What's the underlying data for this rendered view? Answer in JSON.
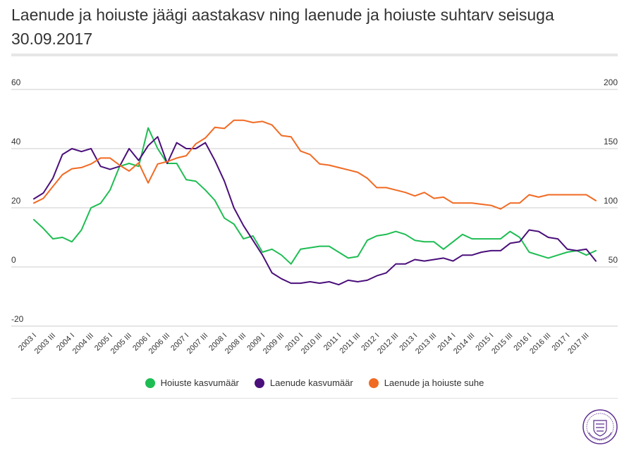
{
  "title": "Laenude ja hoiuste jäägi aastakasv ning laenude ja hoiuste suhtarv seisuga 30.09.2017",
  "colors": {
    "hoiused": "#1ebd53",
    "laenud": "#4a0f7a",
    "suhe": "#f16a22",
    "grid": "#cccccc",
    "seal": "#5b2d8e"
  },
  "chart_data": {
    "type": "line",
    "left_axis": {
      "min": -20,
      "max": 60,
      "ticks": [
        -20,
        0,
        20,
        40,
        60
      ]
    },
    "right_axis": {
      "min": 0,
      "max": 200,
      "ticks": [
        50,
        100,
        150,
        200
      ]
    },
    "x_tick_labels": [
      "2003 I",
      "2003 III",
      "2004 I",
      "2004 III",
      "2005 I",
      "2005 III",
      "2006 I",
      "2006 III",
      "2007 I",
      "2007 III",
      "2008 I",
      "2008 III",
      "2009 I",
      "2009 III",
      "2010 I",
      "2010 III",
      "2011 I",
      "2011 III",
      "2012 I",
      "2012 III",
      "2013 I",
      "2013 III",
      "2014 I",
      "2014 III",
      "2015 I",
      "2015 III",
      "2016 I",
      "2016 III",
      "2017 I",
      "2017 III"
    ],
    "series": [
      {
        "name": "Hoiuste kasvumäär",
        "axis": "left",
        "color_key": "hoiused",
        "values": [
          16,
          13,
          9.5,
          10,
          8.5,
          12.5,
          20,
          21.5,
          26,
          34,
          35,
          34,
          47,
          40,
          35,
          35,
          29.5,
          29,
          26,
          22.5,
          16.5,
          14.5,
          9.5,
          10.5,
          5,
          6,
          4,
          1,
          6,
          6.5,
          7,
          7,
          5,
          3,
          3.5,
          9,
          10.5,
          11,
          12,
          11,
          9,
          8.5,
          8.5,
          6,
          8.5,
          11,
          9.5,
          9.5,
          9.5,
          9.5,
          12,
          10,
          5,
          4,
          3,
          4,
          5,
          5.5,
          4,
          5.5
        ]
      },
      {
        "name": "Laenude kasvumäär",
        "axis": "left",
        "color_key": "laenud",
        "values": [
          23,
          25,
          30,
          38,
          40,
          39,
          40,
          34,
          33,
          34,
          40,
          36,
          41,
          44,
          35,
          42,
          40,
          40,
          42,
          36,
          29,
          20,
          14,
          9,
          4,
          -2,
          -4,
          -5.5,
          -5.5,
          -5,
          -5.5,
          -5,
          -6,
          -4.5,
          -5,
          -4.5,
          -3,
          -2,
          1,
          1,
          2.5,
          2,
          2.5,
          3,
          2,
          4,
          4,
          5,
          5.5,
          5.5,
          8,
          8.5,
          12.5,
          12,
          10,
          9.5,
          6,
          5.5,
          6,
          2
        ]
      },
      {
        "name": "Laenude ja hoiuste suhe",
        "axis": "right",
        "color_key": "suhe",
        "values": [
          104,
          108,
          118,
          128,
          133,
          134,
          137,
          142,
          142,
          136,
          131,
          138,
          121,
          137,
          139,
          142,
          144,
          154,
          159,
          168,
          167,
          174,
          174,
          172,
          173,
          170,
          161,
          160,
          148,
          145,
          137,
          136,
          134,
          132,
          130,
          125,
          117,
          117,
          115,
          113,
          110,
          113,
          108,
          109,
          104,
          104,
          104,
          103,
          102,
          99,
          104,
          104,
          111,
          109,
          111,
          111,
          111,
          111,
          111,
          106
        ]
      }
    ]
  },
  "legend": {
    "items": [
      "Hoiuste kasvumäär",
      "Laenude kasvumäär",
      "Laenude ja hoiuste suhe"
    ]
  }
}
